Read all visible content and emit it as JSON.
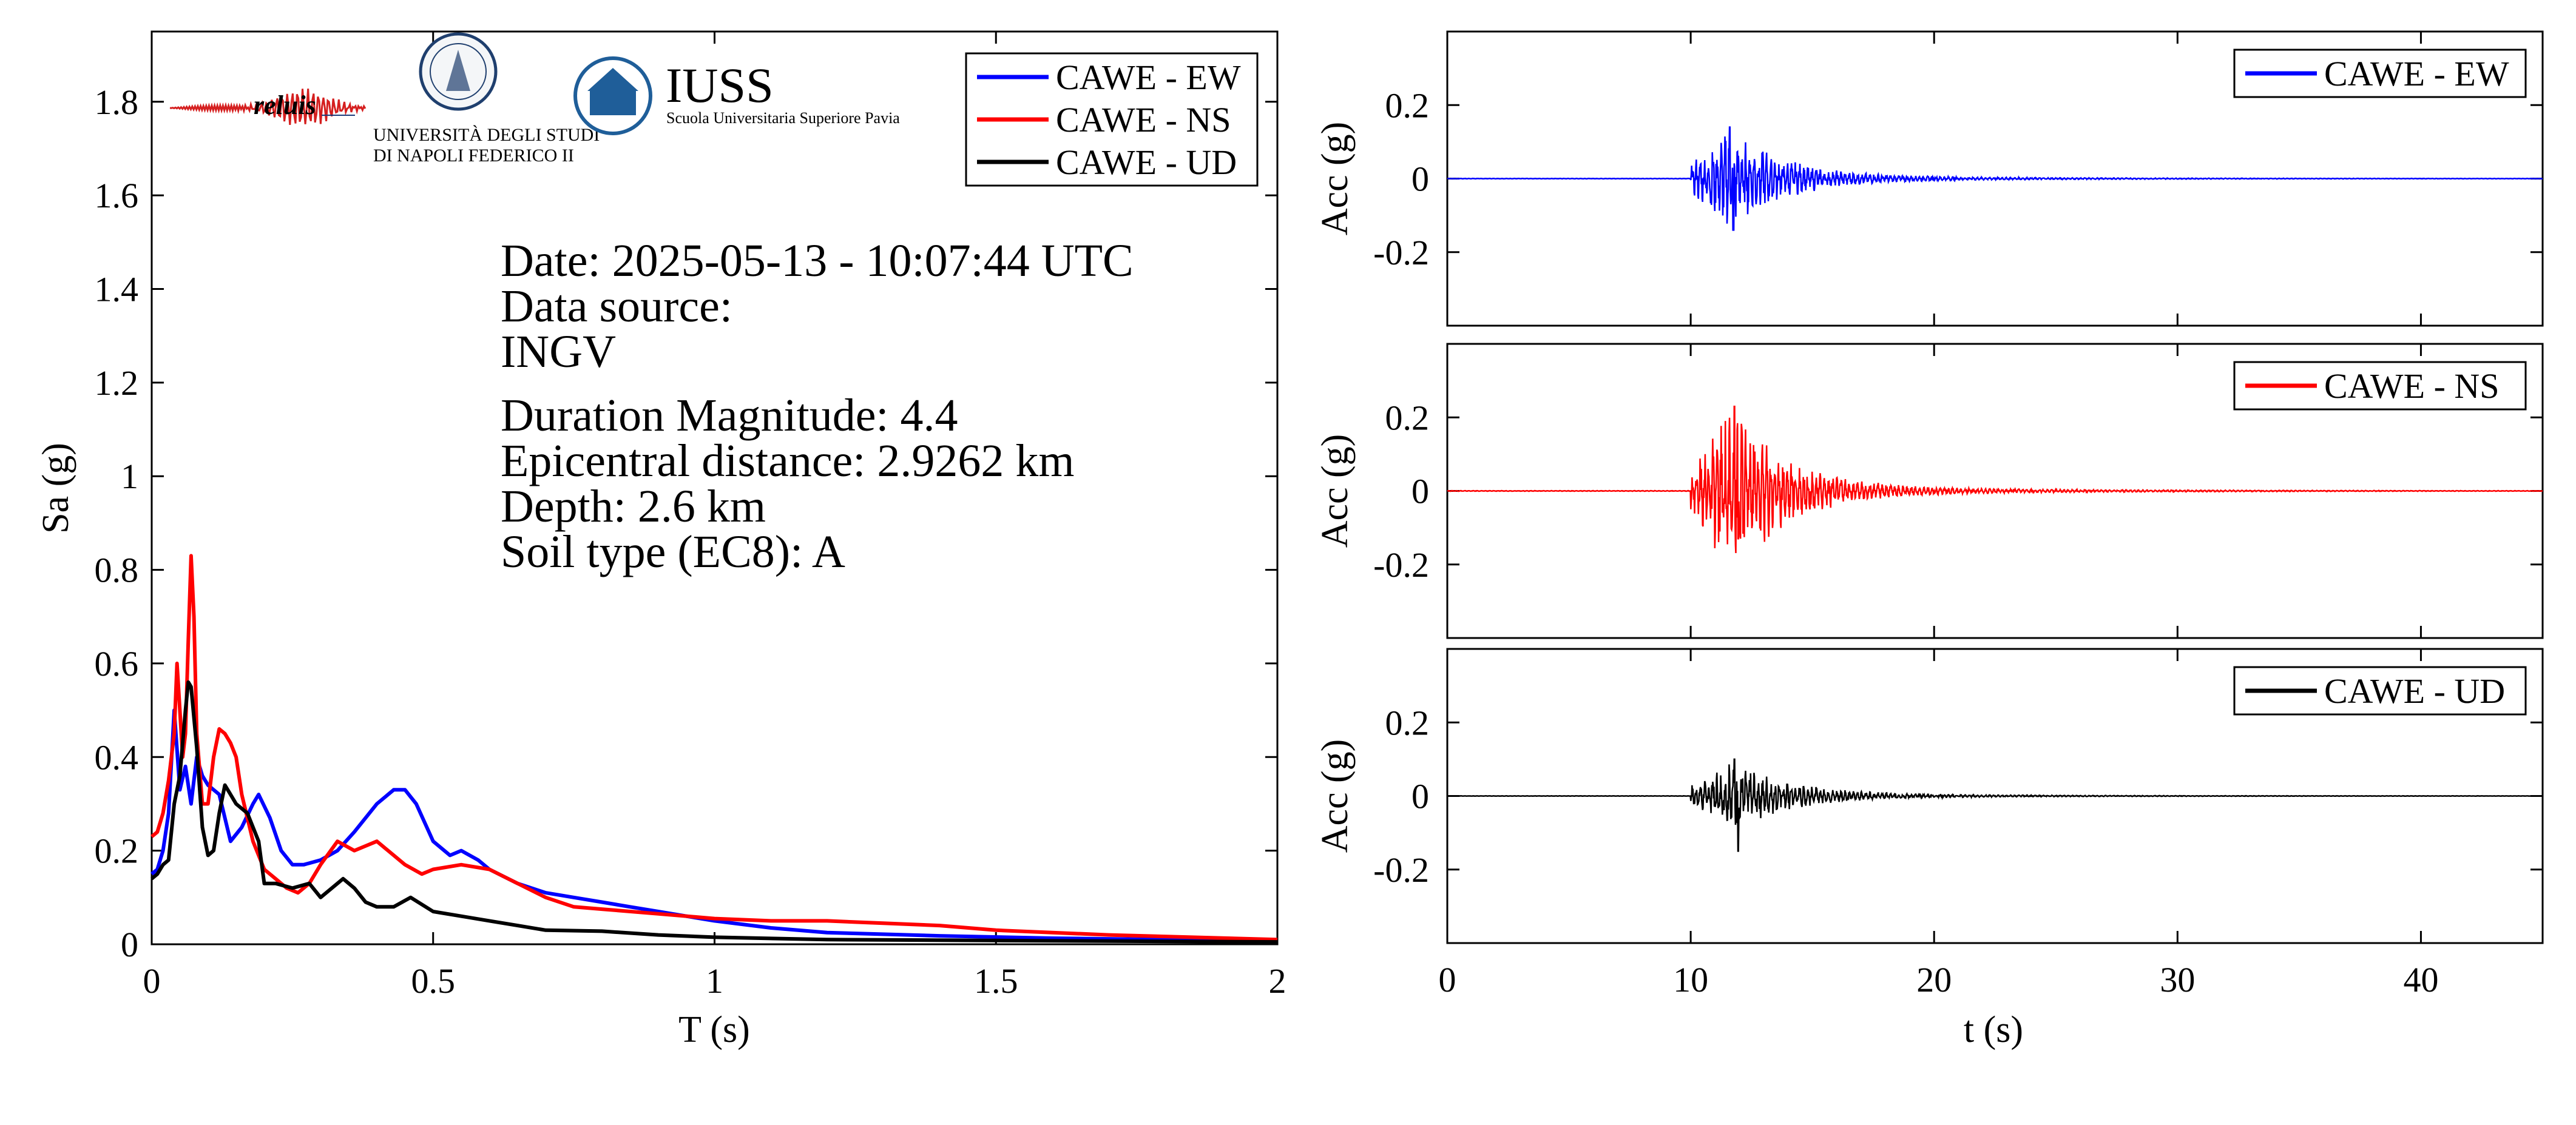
{
  "info": {
    "date": "Date: 2025-05-13 - 10:07:44 UTC",
    "source_label": "Data source:",
    "source": "INGV",
    "magnitude": "Duration Magnitude: 4.4",
    "distance": "Epicentral distance: 2.9262 km",
    "depth": "Depth: 2.6 km",
    "soil": "Soil type (EC8): A"
  },
  "logos": {
    "reluis": "reluis",
    "unina_line1": "UNIVERSITÀ DEGLI STUDI",
    "unina_line2": "DI NAPOLI FEDERICO II",
    "iuss": "IUSS",
    "iuss_sub": "Scuola Universitaria Superiore Pavia"
  },
  "colors": {
    "ew": "#0000ff",
    "ns": "#ff0000",
    "ud": "#000000"
  },
  "chart_data": [
    {
      "type": "line",
      "xlabel": "T (s)",
      "ylabel": "Sa (g)",
      "xlim": [
        0,
        2
      ],
      "ylim": [
        0,
        1.95
      ],
      "xticks": [
        0,
        0.5,
        1,
        1.5,
        2
      ],
      "xtick_labels": [
        "0",
        "0.5",
        "1",
        "1.5",
        "2"
      ],
      "yticks": [
        0,
        0.2,
        0.4,
        0.6,
        0.8,
        1,
        1.2,
        1.4,
        1.6,
        1.8
      ],
      "ytick_labels": [
        "0",
        "0.2",
        "0.4",
        "0.6",
        "0.8",
        "1",
        "1.2",
        "1.4",
        "1.6",
        "1.8"
      ],
      "legend_position": "top-right",
      "series": [
        {
          "name": "CAWE - EW",
          "color": "#0000ff",
          "x": [
            0,
            0.01,
            0.02,
            0.03,
            0.04,
            0.05,
            0.06,
            0.07,
            0.08,
            0.09,
            0.1,
            0.12,
            0.14,
            0.16,
            0.18,
            0.19,
            0.21,
            0.23,
            0.25,
            0.27,
            0.3,
            0.33,
            0.36,
            0.4,
            0.43,
            0.45,
            0.47,
            0.5,
            0.53,
            0.55,
            0.58,
            0.6,
            0.65,
            0.7,
            0.75,
            0.8,
            0.85,
            0.9,
            1.0,
            1.1,
            1.2,
            1.4,
            1.6,
            1.8,
            2.0
          ],
          "y": [
            0.15,
            0.16,
            0.2,
            0.28,
            0.5,
            0.33,
            0.38,
            0.3,
            0.4,
            0.36,
            0.34,
            0.32,
            0.22,
            0.25,
            0.3,
            0.32,
            0.27,
            0.2,
            0.17,
            0.17,
            0.18,
            0.2,
            0.24,
            0.3,
            0.33,
            0.33,
            0.3,
            0.22,
            0.19,
            0.2,
            0.18,
            0.16,
            0.13,
            0.11,
            0.1,
            0.09,
            0.08,
            0.07,
            0.05,
            0.035,
            0.025,
            0.018,
            0.013,
            0.01,
            0.008
          ]
        },
        {
          "name": "CAWE - NS",
          "color": "#ff0000",
          "x": [
            0,
            0.01,
            0.02,
            0.03,
            0.04,
            0.045,
            0.05,
            0.055,
            0.06,
            0.065,
            0.07,
            0.075,
            0.08,
            0.09,
            0.1,
            0.11,
            0.12,
            0.13,
            0.14,
            0.15,
            0.16,
            0.18,
            0.2,
            0.22,
            0.24,
            0.26,
            0.28,
            0.3,
            0.33,
            0.36,
            0.38,
            0.4,
            0.42,
            0.45,
            0.48,
            0.5,
            0.55,
            0.6,
            0.65,
            0.7,
            0.75,
            0.8,
            0.9,
            1.0,
            1.1,
            1.2,
            1.3,
            1.4,
            1.5,
            1.7,
            2.0
          ],
          "y": [
            0.23,
            0.24,
            0.28,
            0.35,
            0.45,
            0.6,
            0.5,
            0.4,
            0.45,
            0.65,
            0.83,
            0.7,
            0.45,
            0.3,
            0.3,
            0.4,
            0.46,
            0.45,
            0.43,
            0.4,
            0.32,
            0.22,
            0.16,
            0.14,
            0.12,
            0.11,
            0.13,
            0.17,
            0.22,
            0.2,
            0.21,
            0.22,
            0.2,
            0.17,
            0.15,
            0.16,
            0.17,
            0.16,
            0.13,
            0.1,
            0.08,
            0.075,
            0.065,
            0.055,
            0.05,
            0.05,
            0.045,
            0.04,
            0.03,
            0.02,
            0.01
          ]
        },
        {
          "name": "CAWE - UD",
          "color": "#000000",
          "x": [
            0,
            0.01,
            0.02,
            0.03,
            0.04,
            0.05,
            0.06,
            0.065,
            0.07,
            0.08,
            0.09,
            0.1,
            0.11,
            0.12,
            0.13,
            0.14,
            0.15,
            0.17,
            0.19,
            0.2,
            0.22,
            0.25,
            0.28,
            0.3,
            0.32,
            0.34,
            0.36,
            0.38,
            0.4,
            0.43,
            0.46,
            0.5,
            0.55,
            0.6,
            0.65,
            0.7,
            0.8,
            0.9,
            1.0,
            1.2,
            1.5,
            2.0
          ],
          "y": [
            0.14,
            0.15,
            0.17,
            0.18,
            0.3,
            0.36,
            0.5,
            0.56,
            0.55,
            0.42,
            0.25,
            0.19,
            0.2,
            0.28,
            0.34,
            0.32,
            0.3,
            0.28,
            0.22,
            0.13,
            0.13,
            0.12,
            0.13,
            0.1,
            0.12,
            0.14,
            0.12,
            0.09,
            0.08,
            0.08,
            0.1,
            0.07,
            0.06,
            0.05,
            0.04,
            0.03,
            0.028,
            0.02,
            0.015,
            0.01,
            0.008,
            0.005
          ]
        }
      ]
    },
    {
      "type": "line",
      "xlabel": "",
      "ylabel": "Acc (g)",
      "xlim": [
        0,
        45
      ],
      "ylim": [
        -0.4,
        0.4
      ],
      "yticks": [
        -0.2,
        0,
        0.2
      ],
      "ytick_labels": [
        "-0.2",
        "0",
        "0.2"
      ],
      "legend_position": "top-right",
      "series": [
        {
          "name": "CAWE - EW",
          "color": "#0000ff",
          "onset": 10,
          "peak_time": 11.6,
          "pga": 0.14,
          "min": -0.14,
          "duration": 45
        }
      ]
    },
    {
      "type": "line",
      "xlabel": "",
      "ylabel": "Acc (g)",
      "xlim": [
        0,
        45
      ],
      "ylim": [
        -0.4,
        0.4
      ],
      "yticks": [
        -0.2,
        0,
        0.2
      ],
      "ytick_labels": [
        "-0.2",
        "0",
        "0.2"
      ],
      "legend_position": "top-right",
      "series": [
        {
          "name": "CAWE - NS",
          "color": "#ff0000",
          "onset": 10,
          "peak_time": 11.8,
          "pga": 0.23,
          "min": -0.13,
          "duration": 45
        }
      ]
    },
    {
      "type": "line",
      "xlabel": "t (s)",
      "ylabel": "Acc (g)",
      "xlim": [
        0,
        45
      ],
      "ylim": [
        -0.4,
        0.4
      ],
      "xticks": [
        0,
        10,
        20,
        30,
        40
      ],
      "xtick_labels": [
        "0",
        "10",
        "20",
        "30",
        "40"
      ],
      "yticks": [
        -0.2,
        0,
        0.2
      ],
      "ytick_labels": [
        "-0.2",
        "0",
        "0.2"
      ],
      "legend_position": "top-right",
      "series": [
        {
          "name": "CAWE - UD",
          "color": "#000000",
          "onset": 10,
          "peak_time": 11.8,
          "pga": 0.1,
          "min": -0.15,
          "duration": 45
        }
      ]
    }
  ]
}
